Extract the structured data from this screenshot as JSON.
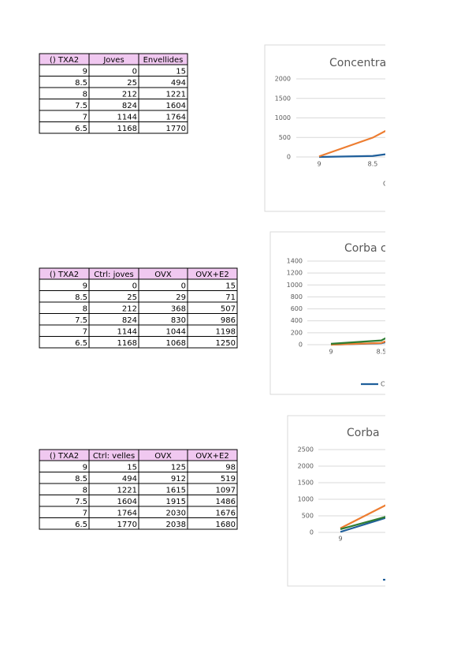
{
  "tables": [
    {
      "header": [
        "() TXA2",
        "Joves",
        "Envellides"
      ],
      "rows": [
        [
          9,
          0,
          15
        ],
        [
          8.5,
          25,
          494
        ],
        [
          8,
          212,
          1221
        ],
        [
          7.5,
          824,
          1604
        ],
        [
          7,
          1144,
          1764
        ],
        [
          6.5,
          1168,
          1770
        ]
      ]
    },
    {
      "header": [
        "() TXA2",
        "Ctrl: joves",
        "OVX",
        "OVX+E2"
      ],
      "rows": [
        [
          9,
          0,
          0,
          15
        ],
        [
          8.5,
          25,
          29,
          71
        ],
        [
          8,
          212,
          368,
          507
        ],
        [
          7.5,
          824,
          830,
          986
        ],
        [
          7,
          1144,
          1044,
          1198
        ],
        [
          6.5,
          1168,
          1068,
          1250
        ]
      ]
    },
    {
      "header": [
        "() TXA2",
        "Ctrl: velles",
        "OVX",
        "OVX+E2"
      ],
      "rows": [
        [
          9,
          15,
          125,
          98
        ],
        [
          8.5,
          494,
          912,
          519
        ],
        [
          8,
          1221,
          1615,
          1097
        ],
        [
          7.5,
          1604,
          1915,
          1486
        ],
        [
          7,
          1764,
          2030,
          1676
        ],
        [
          6.5,
          1770,
          2038,
          1680
        ]
      ]
    }
  ],
  "charts": [
    {
      "title": "Concentra",
      "ylim": [
        0,
        2000
      ],
      "yticks": [
        0,
        500,
        1000,
        1500,
        2000
      ],
      "categories": [
        "9",
        "8.5"
      ],
      "axis_label": "C",
      "colors": [
        "#1f5f9b",
        "#ed7d31"
      ]
    },
    {
      "title": "Corba c",
      "ylim": [
        0,
        1400
      ],
      "yticks": [
        0,
        200,
        400,
        600,
        800,
        1000,
        1200,
        1400
      ],
      "categories": [
        "9",
        "8.5"
      ],
      "legend": "C",
      "colors": [
        "#1f5f9b",
        "#ed7d31",
        "#2e7d32"
      ]
    },
    {
      "title": "Corba",
      "ylim": [
        0,
        2500
      ],
      "yticks": [
        0,
        500,
        1000,
        1500,
        2000,
        2500
      ],
      "categories": [
        "9"
      ],
      "colors": [
        "#1f5f9b",
        "#ed7d31",
        "#2e7d32"
      ]
    }
  ]
}
